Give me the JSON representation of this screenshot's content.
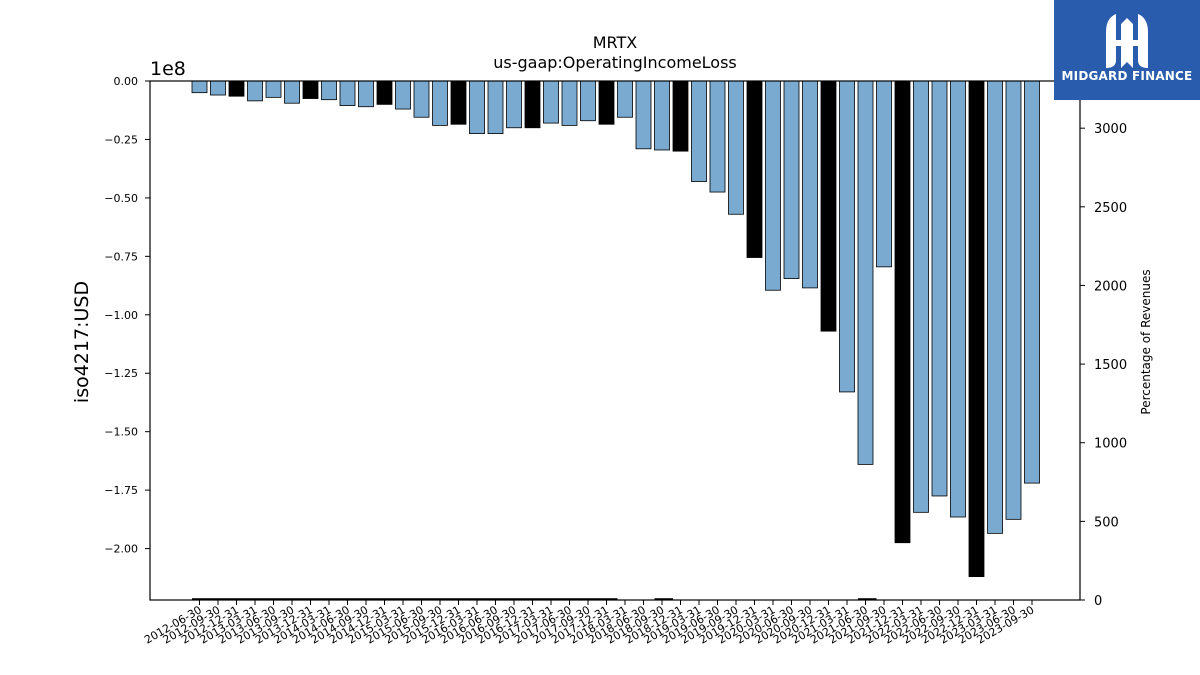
{
  "logo": {
    "text": "MIDGARD FINANCE",
    "icon": "midgard-logo-icon",
    "background": "#2a5cad"
  },
  "chart_data": {
    "type": "bar",
    "title": "MRTX",
    "subtitle": "us-gaap:OperatingIncomeLoss",
    "ylabel": "iso4217:USD",
    "y_multiplier": "1e8",
    "ylim": [
      -2.22,
      0
    ],
    "y_ticks": [
      0,
      -0.25,
      -0.5,
      -0.75,
      -1.0,
      -1.25,
      -1.5,
      -1.75,
      -2.0
    ],
    "y_tick_labels": [
      "0.00",
      "−0.25",
      "−0.50",
      "−0.75",
      "−1.00",
      "−1.25",
      "−1.50",
      "−1.75",
      "−2.00"
    ],
    "y2label": "Percentage of Revenues",
    "y2lim": [
      0,
      3300
    ],
    "y2_ticks": [
      0,
      500,
      1000,
      1500,
      2000,
      2500,
      3000
    ],
    "grid": false,
    "colors": {
      "quarter": "#7aaad0",
      "annual": "#000000",
      "edge": "#000000"
    },
    "categories": [
      "2012-06-30",
      "2012-09-30",
      "2012-12-31",
      "2013-03-31",
      "2013-06-30",
      "2013-09-30",
      "2013-12-31",
      "2014-03-31",
      "2014-06-30",
      "2014-09-30",
      "2014-12-31",
      "2015-03-31",
      "2015-06-30",
      "2015-09-30",
      "2015-12-31",
      "2016-03-31",
      "2016-06-30",
      "2016-09-30",
      "2016-12-31",
      "2017-03-31",
      "2017-06-30",
      "2017-09-30",
      "2017-12-31",
      "2018-03-31",
      "2018-06-30",
      "2018-09-30",
      "2018-12-31",
      "2019-03-31",
      "2019-06-30",
      "2019-09-30",
      "2019-12-31",
      "2020-03-31",
      "2020-06-30",
      "2020-09-30",
      "2020-12-31",
      "2021-03-31",
      "2021-06-30",
      "2021-09-30",
      "2021-12-31",
      "2022-03-31",
      "2022-06-30",
      "2022-09-30",
      "2022-12-31",
      "2023-03-31",
      "2023-06-30",
      "2023-09-30"
    ],
    "series": [
      {
        "values": [
          -0.05,
          -0.06,
          -0.065,
          -0.085,
          -0.07,
          -0.095,
          -0.075,
          -0.08,
          -0.105,
          -0.11,
          -0.1,
          -0.12,
          -0.155,
          -0.19,
          -0.185,
          -0.225,
          -0.225,
          -0.2,
          -0.2,
          -0.18,
          -0.19,
          -0.17,
          -0.185,
          -0.155,
          -0.29,
          -0.295,
          -0.3,
          -0.43,
          -0.475,
          -0.57,
          -0.755,
          -0.895,
          -0.845,
          -0.885,
          -1.07,
          -1.33,
          -1.64,
          -0.795,
          -1.975,
          -1.845,
          -1.775,
          -1.865,
          -2.12,
          -1.935,
          -1.875,
          -1.72
        ],
        "annual": [
          false,
          false,
          true,
          false,
          false,
          false,
          true,
          false,
          false,
          false,
          true,
          false,
          false,
          false,
          true,
          false,
          false,
          false,
          true,
          false,
          false,
          false,
          true,
          false,
          false,
          false,
          true,
          false,
          false,
          false,
          true,
          false,
          false,
          false,
          true,
          false,
          false,
          false,
          true,
          false,
          false,
          false,
          true,
          false,
          false,
          false
        ]
      },
      {
        "axis": "right",
        "note_values_percent": [
          5,
          5,
          5,
          5,
          5,
          5,
          5,
          5,
          5,
          5,
          5,
          5,
          5,
          5,
          5,
          5,
          5,
          5,
          5,
          5,
          5,
          5,
          5,
          null,
          null,
          5,
          null,
          null,
          null,
          null,
          null,
          null,
          null,
          null,
          null,
          null,
          5,
          null,
          null,
          null,
          null,
          null,
          null,
          null,
          null,
          null
        ]
      }
    ]
  }
}
